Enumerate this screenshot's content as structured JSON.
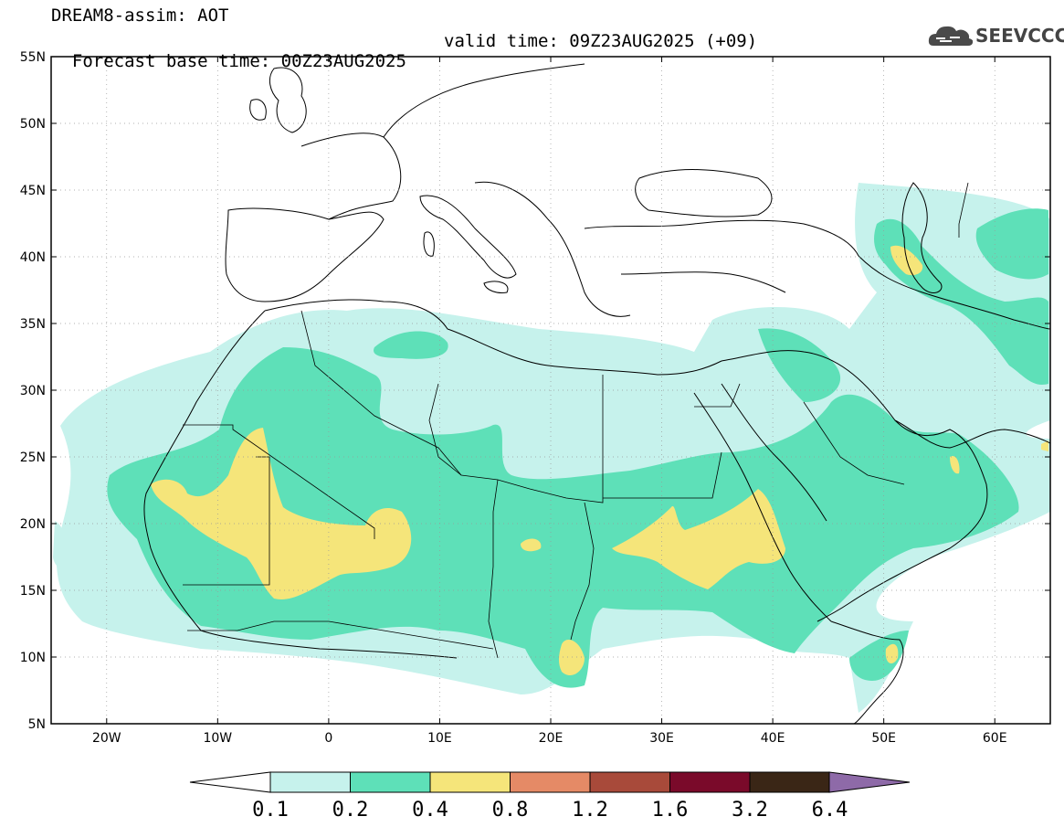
{
  "header": {
    "line1": "DREAM8-assim: AOT",
    "base_time": "Forecast base time: 00Z23AUG2025",
    "valid_time": "valid time: 09Z23AUG2025 (+09)"
  },
  "logo": {
    "text": "SEEVCCC",
    "icon": "cloud-icon"
  },
  "map": {
    "lon_range": [
      -25,
      65
    ],
    "lat_range": [
      5,
      55
    ],
    "lat_labels": [
      "55N",
      "50N",
      "45N",
      "40N",
      "35N",
      "30N",
      "25N",
      "20N",
      "15N",
      "10N",
      "5N"
    ],
    "lon_labels": [
      "20W",
      "10W",
      "0",
      "10E",
      "20E",
      "30E",
      "40E",
      "50E",
      "60E"
    ],
    "lat_values": [
      55,
      50,
      45,
      40,
      35,
      30,
      25,
      20,
      15,
      10,
      5
    ],
    "lon_values": [
      -20,
      -10,
      0,
      10,
      20,
      30,
      40,
      50,
      60
    ]
  },
  "colorbar": {
    "levels": [
      "0.1",
      "0.2",
      "0.4",
      "0.8",
      "1.2",
      "1.6",
      "3.2",
      "6.4"
    ],
    "colors": [
      "#c6f2ec",
      "#5ee0b8",
      "#f5e57a",
      "#e58a66",
      "#a84a3a",
      "#7a0a2a",
      "#3a2616",
      "#8e6aa8"
    ],
    "under_color": "#ffffff",
    "over_color": "#8e6aa8"
  }
}
